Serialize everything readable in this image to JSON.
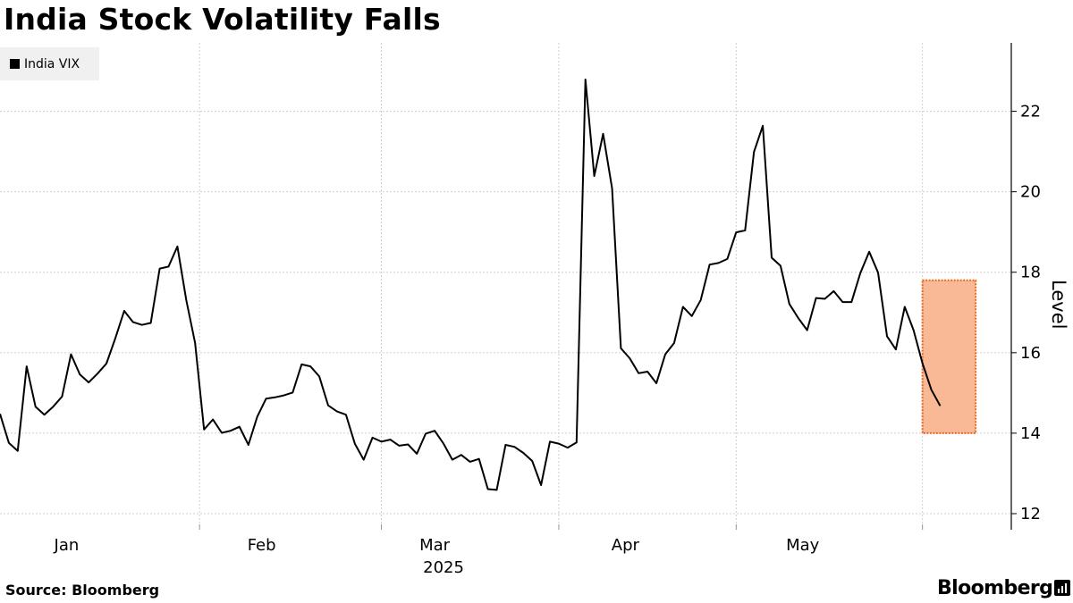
{
  "title": "India Stock Volatility Falls",
  "source": "Source: Bloomberg",
  "brand": "Bloomberg",
  "colors": {
    "line": "#000000",
    "highlight_fill": "#f9b896",
    "highlight_border": "#e8681f",
    "grid": "#cfcfcf"
  },
  "chart_data": {
    "type": "line",
    "title": "India Stock Volatility Falls",
    "legend": [
      "India VIX"
    ],
    "ylabel": "Level",
    "year_label": "2025",
    "ylim": [
      11.6,
      23.7
    ],
    "y_ticks": [
      12,
      14,
      16,
      18,
      20,
      22
    ],
    "month_labels": [
      "Jan",
      "Feb",
      "Mar",
      "Apr",
      "May"
    ],
    "month_label_positions": [
      7.5,
      29.5,
      49,
      70.5,
      90.5
    ],
    "month_boundaries": [
      22.5,
      43,
      63,
      83,
      104
    ],
    "x_range": [
      0,
      112
    ],
    "highlight": {
      "x_start": 104,
      "x_end": 110,
      "y_low": 14,
      "y_high": 17.8
    },
    "series": [
      {
        "name": "India VIX",
        "values": [
          14.48,
          13.76,
          13.56,
          15.66,
          14.66,
          14.46,
          14.66,
          14.91,
          15.96,
          15.46,
          15.26,
          15.48,
          15.73,
          16.36,
          17.04,
          16.76,
          16.69,
          16.74,
          18.09,
          18.14,
          18.64,
          17.31,
          16.24,
          14.09,
          14.34,
          14.01,
          14.06,
          14.16,
          13.71,
          14.41,
          14.86,
          14.89,
          14.94,
          15.01,
          15.71,
          15.66,
          15.41,
          14.69,
          14.54,
          14.46,
          13.74,
          13.34,
          13.89,
          13.79,
          13.84,
          13.69,
          13.72,
          13.49,
          13.99,
          14.06,
          13.74,
          13.34,
          13.46,
          13.29,
          13.36,
          12.61,
          12.59,
          13.71,
          13.66,
          13.51,
          13.31,
          12.71,
          13.79,
          13.74,
          13.64,
          13.77,
          22.79,
          20.39,
          21.44,
          20.09,
          16.11,
          15.86,
          15.49,
          15.53,
          15.24,
          15.96,
          16.24,
          17.14,
          16.91,
          17.31,
          18.19,
          18.23,
          18.33,
          18.99,
          19.04,
          20.99,
          21.64,
          18.36,
          18.16,
          17.21,
          16.86,
          16.56,
          17.36,
          17.34,
          17.53,
          17.26,
          17.26,
          17.98,
          18.51,
          17.99,
          16.41,
          16.08,
          17.14,
          16.56,
          15.74,
          15.08,
          14.68
        ]
      }
    ]
  }
}
